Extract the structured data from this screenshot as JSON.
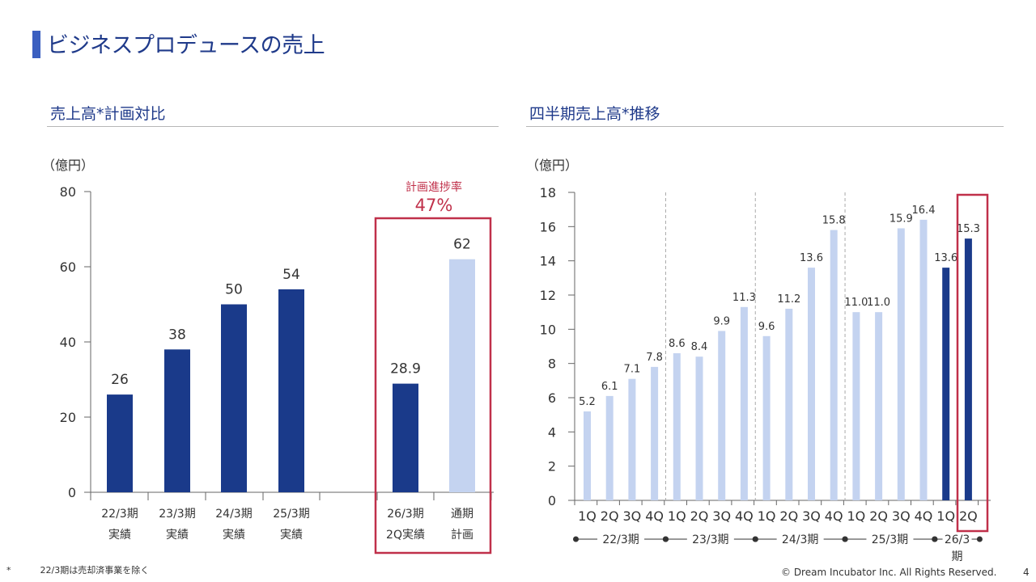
{
  "page": {
    "title": "ビジネスプロデュースの売上",
    "footnote_mark": "*",
    "footnote": "22/3期は売却済事業を除く",
    "copyright": "© Dream Incubator Inc. All Rights Reserved.",
    "page_number": "4"
  },
  "colors": {
    "dark": "#1a3a8a",
    "light": "#c4d3f0",
    "highlight": "#c0304a",
    "title": "#1f3a8a"
  },
  "chart_data": [
    {
      "type": "bar",
      "title": "売上高*計画対比",
      "ylabel": "（億円）",
      "ylim": [
        0,
        80
      ],
      "yticks": [
        0,
        20,
        40,
        60,
        80
      ],
      "categories": [
        {
          "line1": "22/3期",
          "line2": "実績"
        },
        {
          "line1": "23/3期",
          "line2": "実績"
        },
        {
          "line1": "24/3期",
          "line2": "実績"
        },
        {
          "line1": "25/3期",
          "line2": "実績"
        },
        {
          "line1": "26/3期",
          "line2": "2Q実績"
        },
        {
          "line1": "通期",
          "line2": "計画"
        }
      ],
      "values": [
        26,
        38,
        50,
        54,
        28.9,
        62
      ],
      "labels": [
        "26",
        "38",
        "50",
        "54",
        "28.9",
        "62"
      ],
      "bar_kinds": [
        "dark",
        "dark",
        "dark",
        "dark",
        "dark",
        "light"
      ],
      "annotation": {
        "label": "計画進捗率",
        "value": "47%"
      }
    },
    {
      "type": "bar",
      "title": "四半期売上高*推移",
      "ylabel": "（億円）",
      "ylim": [
        0,
        18
      ],
      "yticks": [
        0,
        2,
        4,
        6,
        8,
        10,
        12,
        14,
        16,
        18
      ],
      "categories": [
        "1Q",
        "2Q",
        "3Q",
        "4Q",
        "1Q",
        "2Q",
        "3Q",
        "4Q",
        "1Q",
        "2Q",
        "3Q",
        "4Q",
        "1Q",
        "2Q",
        "3Q",
        "4Q",
        "1Q",
        "2Q"
      ],
      "values": [
        5.2,
        6.1,
        7.1,
        7.8,
        8.6,
        8.4,
        9.9,
        11.3,
        9.6,
        11.2,
        13.6,
        15.8,
        11.0,
        11.0,
        15.9,
        16.4,
        13.6,
        15.3
      ],
      "labels": [
        "5.2",
        "6.1",
        "7.1",
        "7.8",
        "8.6",
        "8.4",
        "9.9",
        "11.3",
        "9.6",
        "11.2",
        "13.6",
        "15.8",
        "11.0",
        "11.0",
        "15.9",
        "16.4",
        "13.6",
        "15.3"
      ],
      "bar_kinds": [
        "light",
        "light",
        "light",
        "light",
        "light",
        "light",
        "light",
        "light",
        "light",
        "light",
        "light",
        "light",
        "light",
        "light",
        "light",
        "light",
        "dark",
        "dark"
      ],
      "periods": [
        "22/3期",
        "23/3期",
        "24/3期",
        "25/3期",
        "26/3",
        "期"
      ]
    }
  ]
}
